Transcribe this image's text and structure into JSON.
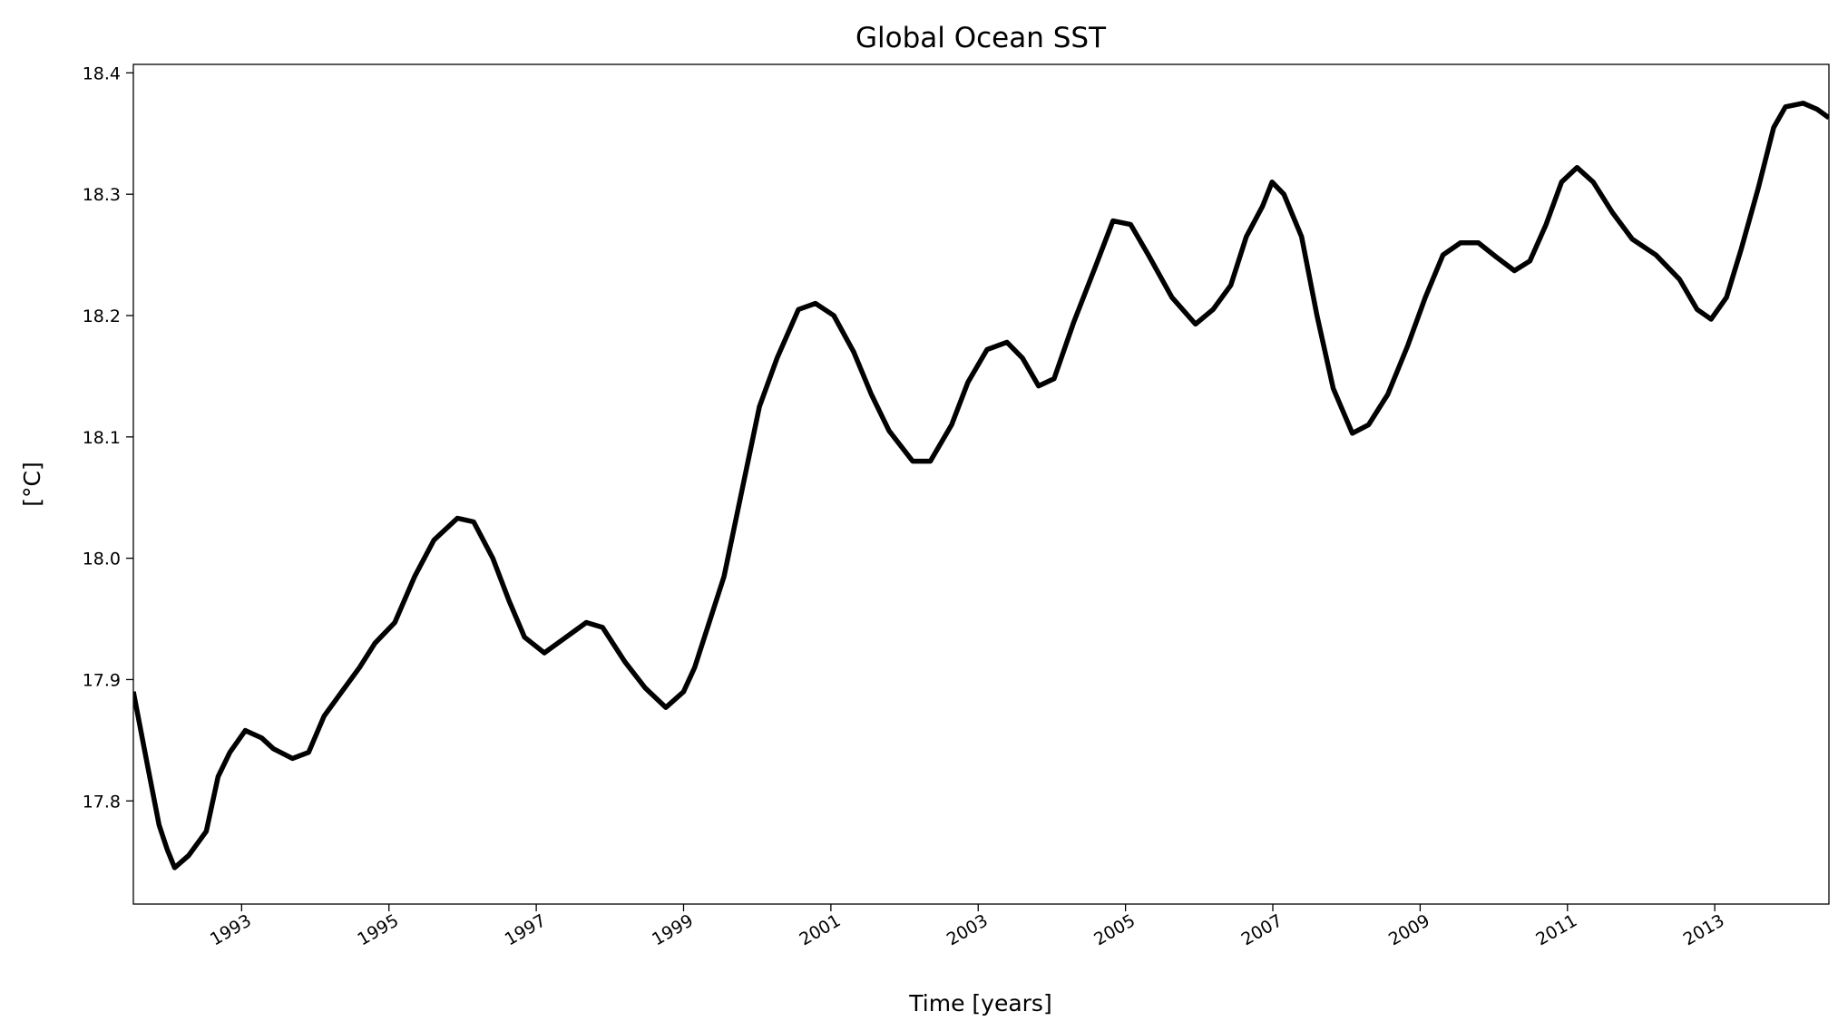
{
  "chart_data": {
    "type": "line",
    "title": "Global Ocean SST",
    "xlabel": "Time [years]",
    "ylabel": "[°C]",
    "x": [
      1991.53,
      1991.72,
      1991.88,
      1991.99,
      1992.09,
      1992.28,
      1992.52,
      1992.68,
      1992.84,
      1993.05,
      1993.27,
      1993.43,
      1993.69,
      1993.91,
      1994.12,
      1994.36,
      1994.6,
      1994.81,
      1995.08,
      1995.35,
      1995.61,
      1995.93,
      1996.15,
      1996.41,
      1996.63,
      1996.84,
      1997.11,
      1997.36,
      1997.68,
      1997.9,
      1998.2,
      1998.48,
      1998.76,
      1999.0,
      1999.15,
      1999.31,
      1999.55,
      1999.79,
      2000.03,
      2000.27,
      2000.56,
      2000.79,
      2001.04,
      2001.31,
      2001.55,
      2001.79,
      2002.11,
      2002.35,
      2002.64,
      2002.86,
      2003.12,
      2003.39,
      2003.6,
      2003.82,
      2004.03,
      2004.3,
      2004.59,
      2004.83,
      2005.07,
      2005.31,
      2005.63,
      2005.95,
      2006.19,
      2006.43,
      2006.64,
      2006.86,
      2006.99,
      2007.15,
      2007.39,
      2007.6,
      2007.82,
      2008.08,
      2008.3,
      2008.56,
      2008.83,
      2009.07,
      2009.31,
      2009.55,
      2009.79,
      2010.04,
      2010.28,
      2010.49,
      2010.71,
      2010.92,
      2011.13,
      2011.35,
      2011.61,
      2011.88,
      2012.2,
      2012.52,
      2012.76,
      2012.95,
      2013.16,
      2013.36,
      2013.59,
      2013.8,
      2013.96,
      2014.2,
      2014.39,
      2014.55
    ],
    "series": [
      {
        "name": "SST",
        "color": "#000000",
        "values": [
          17.89,
          17.83,
          17.78,
          17.76,
          17.745,
          17.755,
          17.775,
          17.82,
          17.84,
          17.858,
          17.852,
          17.843,
          17.835,
          17.84,
          17.87,
          17.89,
          17.91,
          17.93,
          17.947,
          17.985,
          18.015,
          18.033,
          18.03,
          18.0,
          17.965,
          17.935,
          17.922,
          17.933,
          17.947,
          17.943,
          17.915,
          17.893,
          17.877,
          17.89,
          17.91,
          17.94,
          17.985,
          18.055,
          18.125,
          18.165,
          18.205,
          18.21,
          18.2,
          18.17,
          18.135,
          18.105,
          18.08,
          18.08,
          18.11,
          18.145,
          18.172,
          18.178,
          18.165,
          18.142,
          18.148,
          18.195,
          18.24,
          18.278,
          18.275,
          18.25,
          18.215,
          18.193,
          18.205,
          18.225,
          18.265,
          18.29,
          18.31,
          18.3,
          18.265,
          18.2,
          18.14,
          18.103,
          18.11,
          18.135,
          18.175,
          18.215,
          18.25,
          18.26,
          18.26,
          18.248,
          18.237,
          18.245,
          18.275,
          18.31,
          18.322,
          18.31,
          18.285,
          18.263,
          18.25,
          18.23,
          18.205,
          18.197,
          18.215,
          18.255,
          18.305,
          18.355,
          18.372,
          18.375,
          18.37,
          18.363
        ]
      }
    ],
    "xlim": [
      1991.53,
      2014.55
    ],
    "xticks": [
      1993,
      1995,
      1997,
      1999,
      2001,
      2003,
      2005,
      2007,
      2009,
      2011,
      2013
    ],
    "ylim": [
      17.715,
      18.407
    ],
    "yticks": [
      17.8,
      {
        "value": 17.9,
        "label": "17.9"
      },
      {
        "value": 18.0,
        "label": "18.0"
      },
      18.1,
      18.2,
      18.3,
      18.4
    ]
  }
}
